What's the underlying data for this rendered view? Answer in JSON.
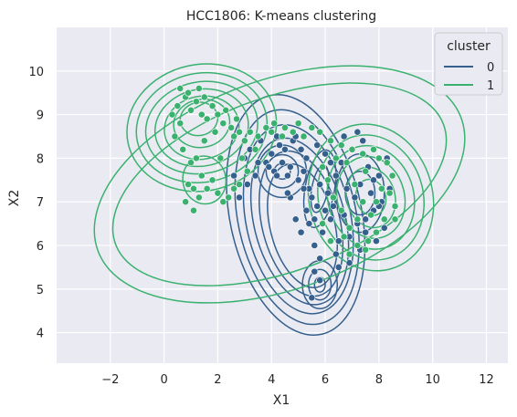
{
  "chart_data": {
    "type": "scatter",
    "title": "HCC1806: K-means clustering",
    "xlabel": "X1",
    "ylabel": "X2",
    "xlim": [
      -4,
      12.8
    ],
    "ylim": [
      3.3,
      11.0
    ],
    "xticks": [
      -2,
      0,
      2,
      4,
      6,
      8,
      10,
      12
    ],
    "xtick_labels": [
      "−2",
      "0",
      "2",
      "4",
      "6",
      "8",
      "10",
      "12"
    ],
    "yticks": [
      4,
      5,
      6,
      7,
      8,
      9,
      10
    ],
    "ytick_labels": [
      "4",
      "5",
      "6",
      "7",
      "8",
      "9",
      "10"
    ],
    "grid": true,
    "overlay": "kde-contours per cluster",
    "legend": {
      "title": "cluster",
      "position": "top-right",
      "entries": [
        {
          "label": "0",
          "color": "#35608d"
        },
        {
          "label": "1",
          "color": "#3bb16f"
        }
      ]
    },
    "series": [
      {
        "name": "0",
        "color": "#35608d",
        "points": [
          [
            3.0,
            8.0
          ],
          [
            3.2,
            8.2
          ],
          [
            3.5,
            7.9
          ],
          [
            3.8,
            7.9
          ],
          [
            3.9,
            7.8
          ],
          [
            4.1,
            7.7
          ],
          [
            4.2,
            7.6
          ],
          [
            4.0,
            8.1
          ],
          [
            4.3,
            8.3
          ],
          [
            4.5,
            8.2
          ],
          [
            4.4,
            7.9
          ],
          [
            4.6,
            7.6
          ],
          [
            4.7,
            7.8
          ],
          [
            4.8,
            8.4
          ],
          [
            4.9,
            8.5
          ],
          [
            5.0,
            7.5
          ],
          [
            5.1,
            8.2
          ],
          [
            5.2,
            7.7
          ],
          [
            5.3,
            8.0
          ],
          [
            5.4,
            7.3
          ],
          [
            5.5,
            7.1
          ],
          [
            5.6,
            6.6
          ],
          [
            5.7,
            6.9
          ],
          [
            5.8,
            7.4
          ],
          [
            5.9,
            6.3
          ],
          [
            5.6,
            6.0
          ],
          [
            5.8,
            5.7
          ],
          [
            5.6,
            5.4
          ],
          [
            5.8,
            5.2
          ],
          [
            5.5,
            4.8
          ],
          [
            6.0,
            6.8
          ],
          [
            6.1,
            7.2
          ],
          [
            6.2,
            6.6
          ],
          [
            6.3,
            6.9
          ],
          [
            6.4,
            7.6
          ],
          [
            6.5,
            6.1
          ],
          [
            6.6,
            7.9
          ],
          [
            6.7,
            6.7
          ],
          [
            6.8,
            7.3
          ],
          [
            6.9,
            6.2
          ],
          [
            7.0,
            8.2
          ],
          [
            7.1,
            7.1
          ],
          [
            7.2,
            6.5
          ],
          [
            7.3,
            7.4
          ],
          [
            7.4,
            8.4
          ],
          [
            7.5,
            6.6
          ],
          [
            7.6,
            7.8
          ],
          [
            7.7,
            7.2
          ],
          [
            7.8,
            6.8
          ],
          [
            7.9,
            6.1
          ],
          [
            8.0,
            7.6
          ],
          [
            8.1,
            7.0
          ],
          [
            8.2,
            6.4
          ],
          [
            8.3,
            8.0
          ],
          [
            8.4,
            7.3
          ],
          [
            7.3,
            5.9
          ],
          [
            6.9,
            5.6
          ],
          [
            6.4,
            5.8
          ],
          [
            7.2,
            8.6
          ],
          [
            6.7,
            8.5
          ],
          [
            2.8,
            7.1
          ],
          [
            3.1,
            7.4
          ],
          [
            2.6,
            7.6
          ],
          [
            4.7,
            7.1
          ],
          [
            5.3,
            6.8
          ],
          [
            4.9,
            6.6
          ],
          [
            5.1,
            6.3
          ],
          [
            5.4,
            6.5
          ],
          [
            7.8,
            7.5
          ],
          [
            6.2,
            7.9
          ],
          [
            3.6,
            8.4
          ],
          [
            4.2,
            8.5
          ],
          [
            5.7,
            8.3
          ],
          [
            6.0,
            8.1
          ],
          [
            4.6,
            7.2
          ],
          [
            5.2,
            7.3
          ],
          [
            3.4,
            7.6
          ],
          [
            6.5,
            5.5
          ],
          [
            7.5,
            6.3
          ],
          [
            8.0,
            6.9
          ]
        ]
      },
      {
        "name": "1",
        "color": "#3bb16f",
        "points": [
          [
            0.3,
            9.0
          ],
          [
            0.5,
            9.2
          ],
          [
            0.6,
            8.8
          ],
          [
            0.8,
            9.4
          ],
          [
            0.9,
            9.5
          ],
          [
            1.0,
            9.1
          ],
          [
            1.2,
            9.3
          ],
          [
            1.4,
            9.0
          ],
          [
            1.5,
            9.4
          ],
          [
            1.6,
            8.9
          ],
          [
            1.8,
            9.2
          ],
          [
            2.0,
            9.0
          ],
          [
            2.2,
            8.8
          ],
          [
            2.3,
            9.1
          ],
          [
            2.5,
            8.7
          ],
          [
            2.6,
            8.5
          ],
          [
            2.8,
            8.6
          ],
          [
            3.0,
            8.4
          ],
          [
            0.4,
            8.5
          ],
          [
            0.7,
            8.2
          ],
          [
            1.0,
            7.9
          ],
          [
            1.2,
            8.0
          ],
          [
            1.4,
            7.6
          ],
          [
            0.9,
            7.4
          ],
          [
            1.1,
            7.3
          ],
          [
            0.8,
            7.0
          ],
          [
            1.3,
            7.1
          ],
          [
            1.6,
            7.3
          ],
          [
            1.8,
            7.5
          ],
          [
            2.0,
            7.2
          ],
          [
            2.2,
            7.0
          ],
          [
            2.4,
            7.1
          ],
          [
            2.6,
            7.3
          ],
          [
            2.8,
            7.4
          ],
          [
            3.1,
            7.7
          ],
          [
            1.1,
            6.8
          ],
          [
            1.5,
            8.4
          ],
          [
            1.9,
            8.6
          ],
          [
            2.1,
            8.0
          ],
          [
            0.6,
            9.6
          ],
          [
            1.3,
            9.6
          ],
          [
            2.7,
            8.9
          ],
          [
            3.2,
            8.6
          ],
          [
            3.5,
            8.5
          ],
          [
            3.8,
            8.7
          ],
          [
            4.1,
            8.8
          ],
          [
            4.5,
            8.7
          ],
          [
            4.8,
            8.6
          ],
          [
            5.2,
            8.5
          ],
          [
            5.5,
            8.7
          ],
          [
            5.8,
            8.6
          ],
          [
            6.2,
            8.4
          ],
          [
            6.6,
            8.3
          ],
          [
            7.0,
            8.2
          ],
          [
            7.4,
            8.1
          ],
          [
            7.8,
            8.2
          ],
          [
            8.0,
            8.0
          ],
          [
            8.3,
            7.9
          ],
          [
            8.5,
            7.6
          ],
          [
            8.4,
            7.2
          ],
          [
            8.6,
            6.9
          ],
          [
            8.2,
            6.6
          ],
          [
            7.9,
            6.3
          ],
          [
            7.6,
            6.1
          ],
          [
            7.2,
            6.0
          ],
          [
            6.9,
            6.4
          ],
          [
            6.6,
            6.8
          ],
          [
            6.3,
            7.1
          ],
          [
            6.1,
            7.5
          ],
          [
            5.9,
            7.8
          ],
          [
            7.1,
            7.4
          ],
          [
            7.4,
            7.0
          ],
          [
            7.7,
            6.7
          ],
          [
            8.1,
            7.3
          ],
          [
            7.5,
            7.7
          ],
          [
            6.8,
            7.9
          ],
          [
            6.4,
            8.0
          ],
          [
            7.2,
            6.6
          ],
          [
            6.7,
            6.2
          ],
          [
            6.2,
            6.1
          ],
          [
            5.9,
            6.5
          ],
          [
            7.9,
            7.0
          ],
          [
            8.6,
            6.6
          ],
          [
            6.9,
            5.8
          ],
          [
            7.5,
            5.9
          ],
          [
            3.4,
            8.2
          ],
          [
            2.9,
            8.0
          ],
          [
            4.0,
            8.6
          ],
          [
            4.4,
            8.5
          ],
          [
            5.0,
            8.8
          ]
        ]
      }
    ],
    "contours": [
      {
        "cluster": "0",
        "color": "#35608d",
        "levels": [
          {
            "cx": 4.9,
            "cy": 6.7,
            "rx": 2.45,
            "ry": 2.8,
            "rot": 12
          },
          {
            "cx": 4.95,
            "cy": 6.65,
            "rx": 2.2,
            "ry": 2.5,
            "rot": 12
          },
          {
            "cx": 5.0,
            "cy": 6.6,
            "rx": 1.95,
            "ry": 2.2,
            "rot": 12
          },
          {
            "cx": 5.05,
            "cy": 6.55,
            "rx": 1.7,
            "ry": 1.95,
            "rot": 14
          },
          {
            "cx": 5.1,
            "cy": 6.5,
            "rx": 1.45,
            "ry": 1.7,
            "rot": 14
          },
          {
            "cx": 5.15,
            "cy": 6.45,
            "rx": 1.2,
            "ry": 1.45,
            "rot": 14
          },
          {
            "cx": 4.4,
            "cy": 7.7,
            "rx": 0.9,
            "ry": 0.6,
            "rot": 0
          },
          {
            "cx": 4.4,
            "cy": 7.7,
            "rx": 0.6,
            "ry": 0.38,
            "rot": 0
          },
          {
            "cx": 4.4,
            "cy": 7.7,
            "rx": 0.3,
            "ry": 0.18,
            "rot": 0
          },
          {
            "cx": 5.8,
            "cy": 5.1,
            "rx": 0.65,
            "ry": 0.55,
            "rot": 0
          },
          {
            "cx": 5.8,
            "cy": 5.1,
            "rx": 0.42,
            "ry": 0.35,
            "rot": 0
          },
          {
            "cx": 5.8,
            "cy": 5.1,
            "rx": 0.2,
            "ry": 0.17,
            "rot": 0
          },
          {
            "cx": 5.8,
            "cy": 7.3,
            "rx": 0.55,
            "ry": 0.9,
            "rot": -10
          },
          {
            "cx": 5.8,
            "cy": 7.3,
            "rx": 0.3,
            "ry": 0.55,
            "rot": -10
          },
          {
            "cx": 7.3,
            "cy": 7.2,
            "rx": 0.9,
            "ry": 0.9,
            "rot": 0
          },
          {
            "cx": 7.3,
            "cy": 7.2,
            "rx": 0.55,
            "ry": 0.5,
            "rot": 0
          }
        ]
      },
      {
        "cluster": "1",
        "color": "#3bb16f",
        "levels": [
          {
            "cx": 4.3,
            "cy": 7.4,
            "rx": 7.2,
            "ry": 2.4,
            "rot": 20
          },
          {
            "cx": 4.3,
            "cy": 7.4,
            "rx": 6.5,
            "ry": 2.0,
            "rot": 20
          },
          {
            "cx": 1.4,
            "cy": 8.7,
            "rx": 2.8,
            "ry": 1.45,
            "rot": 12
          },
          {
            "cx": 1.4,
            "cy": 8.7,
            "rx": 2.45,
            "ry": 1.25,
            "rot": 12
          },
          {
            "cx": 1.4,
            "cy": 8.7,
            "rx": 2.1,
            "ry": 1.05,
            "rot": 12
          },
          {
            "cx": 1.4,
            "cy": 8.7,
            "rx": 1.75,
            "ry": 0.88,
            "rot": 12
          },
          {
            "cx": 1.4,
            "cy": 8.7,
            "rx": 1.4,
            "ry": 0.72,
            "rot": 12
          },
          {
            "cx": 1.4,
            "cy": 8.8,
            "rx": 1.05,
            "ry": 0.55,
            "rot": 12
          },
          {
            "cx": 1.3,
            "cy": 8.9,
            "rx": 0.7,
            "ry": 0.38,
            "rot": 12
          },
          {
            "cx": 1.5,
            "cy": 7.5,
            "rx": 0.8,
            "ry": 0.55,
            "rot": 10
          },
          {
            "cx": 7.7,
            "cy": 7.1,
            "rx": 2.3,
            "ry": 1.7,
            "rot": 15
          },
          {
            "cx": 7.7,
            "cy": 7.1,
            "rx": 1.95,
            "ry": 1.45,
            "rot": 15
          },
          {
            "cx": 7.7,
            "cy": 7.1,
            "rx": 1.6,
            "ry": 1.2,
            "rot": 15
          },
          {
            "cx": 7.7,
            "cy": 7.1,
            "rx": 1.25,
            "ry": 0.95,
            "rot": 15
          },
          {
            "cx": 7.7,
            "cy": 7.1,
            "rx": 0.9,
            "ry": 0.7,
            "rot": 15
          },
          {
            "cx": 7.7,
            "cy": 7.1,
            "rx": 0.55,
            "ry": 0.42,
            "rot": 15
          }
        ]
      }
    ]
  }
}
